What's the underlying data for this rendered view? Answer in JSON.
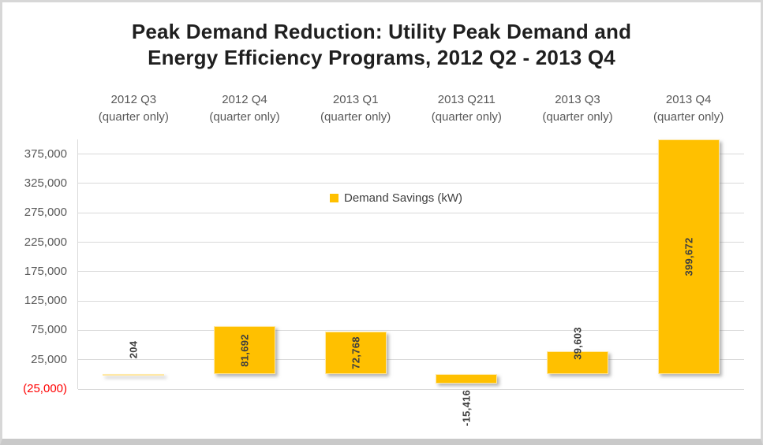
{
  "chart_data": {
    "type": "bar",
    "title_lines": [
      "Peak Demand Reduction: Utility Peak Demand and",
      "Energy Efficiency Programs, 2012 Q2 - 2013 Q4"
    ],
    "categories": [
      {
        "period": "2012 Q3",
        "note": "(quarter only)"
      },
      {
        "period": "2012 Q4",
        "note": "(quarter only)"
      },
      {
        "period": "2013 Q1",
        "note": "(quarter only)"
      },
      {
        "period": "2013 Q211",
        "note": "(quarter only)"
      },
      {
        "period": "2013 Q3",
        "note": "(quarter only)"
      },
      {
        "period": "2013 Q4",
        "note": "(quarter only)"
      }
    ],
    "series": [
      {
        "name": "Demand Savings (kW)",
        "color": "#FFC000",
        "values": [
          204,
          81692,
          72768,
          -15416,
          39603,
          399672
        ],
        "value_labels": [
          "204",
          "81,692",
          "72,768",
          "-15,416",
          "39,603",
          "399,672"
        ]
      }
    ],
    "y_axis": {
      "min": -25000,
      "max": 400000,
      "tick_step": 50000,
      "ticks": [
        {
          "value": 375000,
          "label": "375,000"
        },
        {
          "value": 325000,
          "label": "325,000"
        },
        {
          "value": 275000,
          "label": "275,000"
        },
        {
          "value": 225000,
          "label": "225,000"
        },
        {
          "value": 175000,
          "label": "175,000"
        },
        {
          "value": 125000,
          "label": "125,000"
        },
        {
          "value": 75000,
          "label": "75,000"
        },
        {
          "value": 25000,
          "label": "25,000"
        },
        {
          "value": -25000,
          "label": "(25,000)"
        }
      ]
    },
    "legend": {
      "label": "Demand Savings (kW)",
      "swatch_color": "#FFC000",
      "position": "inside-top-center"
    },
    "grid": true,
    "layout_hints": {
      "category_label_position": "top",
      "value_label_rotation": -90,
      "negative_tick_color": "#FF0000"
    }
  },
  "colors": {
    "bar": "#FFC000",
    "axis_text": "#595959",
    "negative_tick": "#FF0000",
    "value_label": "#3F3F3F",
    "gridline": "#D9D9D9",
    "title": "#1F1F1F"
  }
}
